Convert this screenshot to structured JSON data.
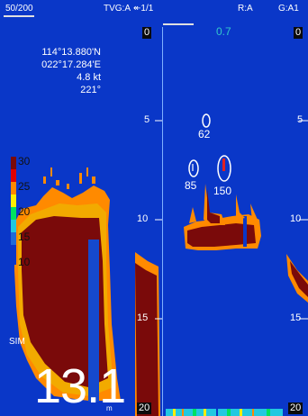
{
  "status": {
    "ping_count": "50/200",
    "tvg": "TVG:A",
    "frame": "1/1",
    "range_mode": "R:A",
    "gain_mode": "G:A1"
  },
  "position": {
    "lon": "114°13.880'N",
    "lat": "022°17.284'E",
    "speed": "4.8 kt",
    "heading": "221°"
  },
  "color_scale": [
    "30",
    "25",
    "20",
    "15",
    "10"
  ],
  "depth_ticks": {
    "left": [
      "0",
      "5",
      "10",
      "15",
      "20"
    ],
    "right": [
      "0",
      "5",
      "10",
      "15",
      "20"
    ]
  },
  "mode_label": "SIM",
  "depth": {
    "value": "13.1",
    "unit": "m"
  },
  "right_panel": {
    "range_value": "0.7",
    "targets": [
      "62",
      "85",
      "150"
    ]
  },
  "colors": {
    "background": "#0a37c8",
    "bottom_echo": "#7a0a0a",
    "fringe": "#ff8a00",
    "readout": "#33c8cc"
  }
}
